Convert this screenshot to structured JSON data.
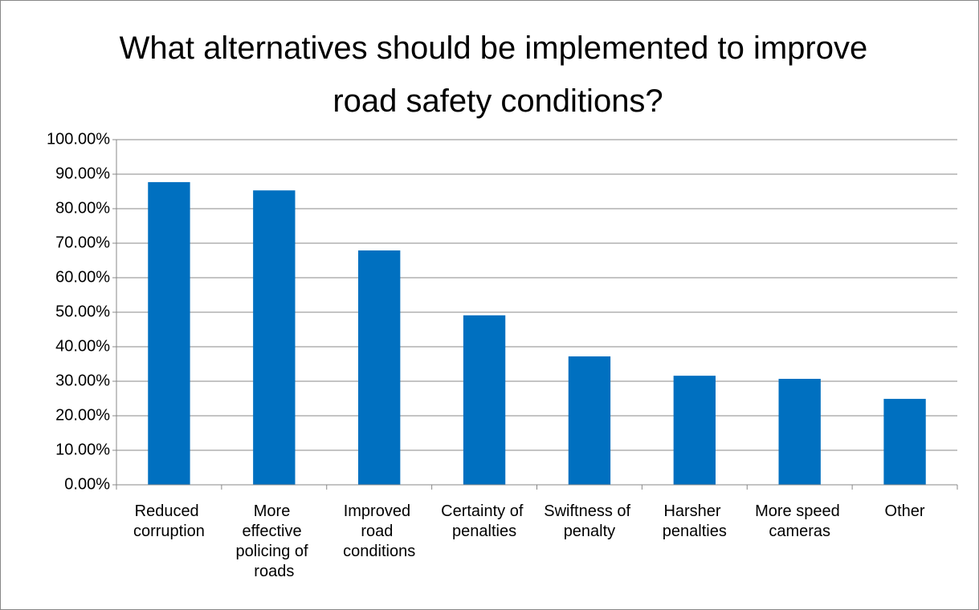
{
  "chart_data": {
    "type": "bar",
    "title": "What alternatives should be implemented to improve road safety conditions?",
    "categories": [
      "Reduced corruption",
      "More effective policing of roads",
      "Improved road conditions",
      "Certainty of penalties",
      "Swiftness of penalty",
      "Harsher penalties",
      "More speed cameras",
      "Other"
    ],
    "values": [
      87.7,
      85.3,
      67.9,
      49.1,
      37.2,
      31.6,
      30.7,
      24.9
    ],
    "color": "#0070c0",
    "ylim": [
      0,
      100
    ],
    "yticks": [
      {
        "value": 0,
        "label": "0.00%"
      },
      {
        "value": 10,
        "label": "10.00%"
      },
      {
        "value": 20,
        "label": "20.00%"
      },
      {
        "value": 30,
        "label": "30.00%"
      },
      {
        "value": 40,
        "label": "40.00%"
      },
      {
        "value": 50,
        "label": "50.00%"
      },
      {
        "value": 60,
        "label": "60.00%"
      },
      {
        "value": 70,
        "label": "70.00%"
      },
      {
        "value": 80,
        "label": "80.00%"
      },
      {
        "value": 90,
        "label": "90.00%"
      },
      {
        "value": 100,
        "label": "100.00%"
      }
    ],
    "grid": true
  }
}
